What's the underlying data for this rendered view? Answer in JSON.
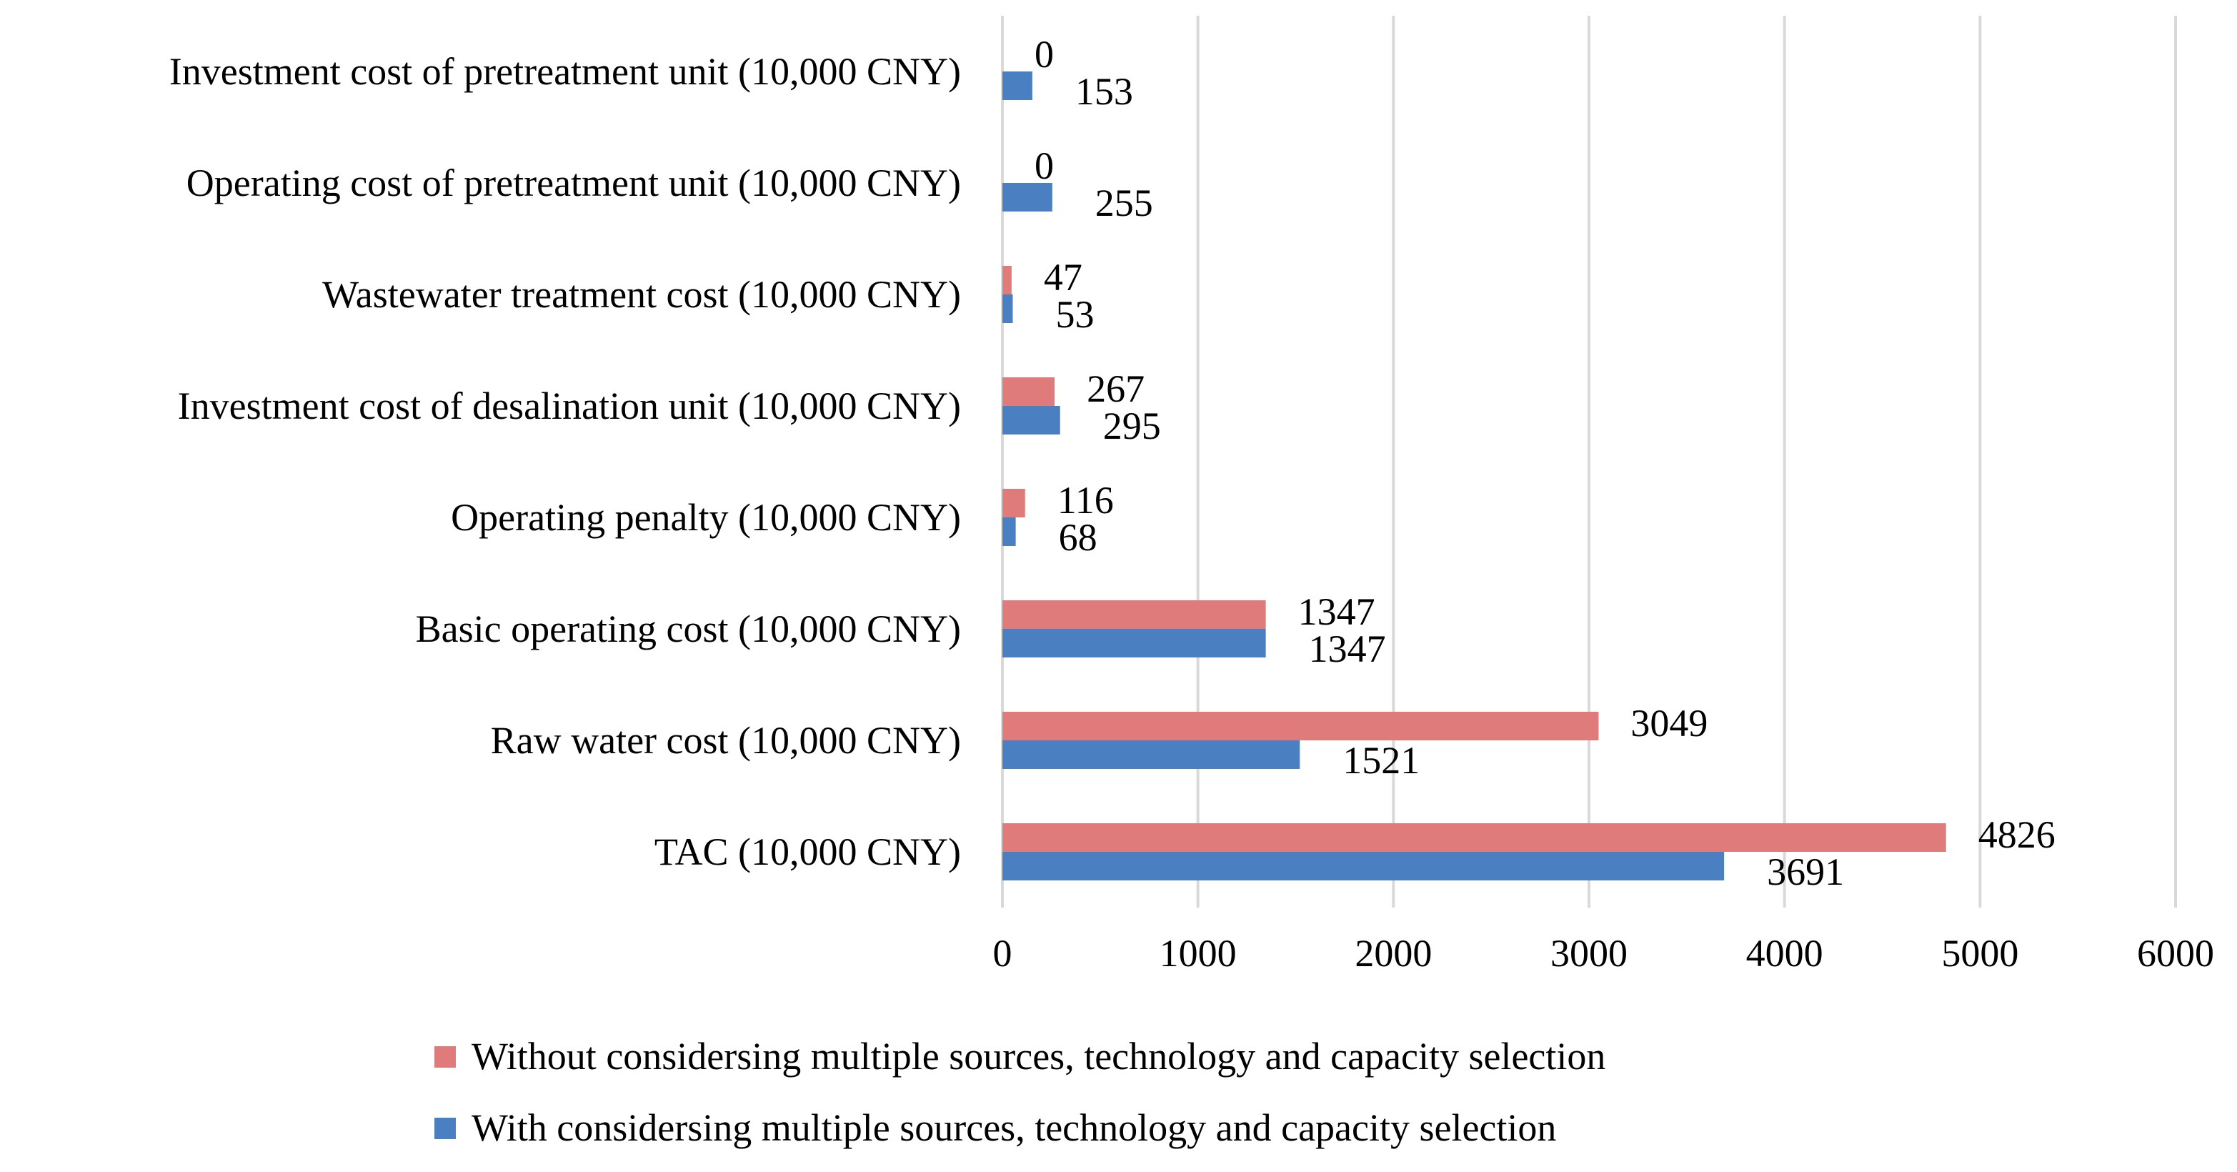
{
  "chart_data": {
    "type": "bar",
    "orientation": "horizontal",
    "categories": [
      "Investment cost of pretreatment unit (10,000 CNY)",
      "Operating cost of pretreatment unit (10,000 CNY)",
      "Wastewater treatment cost (10,000 CNY)",
      "Investment cost of desalination unit  (10,000 CNY)",
      "Operating penalty  (10,000 CNY)",
      "Basic operating cost (10,000 CNY)",
      "Raw water cost (10,000 CNY)",
      "TAC (10,000 CNY)"
    ],
    "series": [
      {
        "name": "Without considersing multiple sources, technology and capacity selection",
        "color": "#e07b7b",
        "values": [
          0,
          0,
          47,
          267,
          116,
          1347,
          3049,
          4826
        ]
      },
      {
        "name": "With considersing multiple sources, technology and capacity selection",
        "color": "#4a7fc1",
        "values": [
          153,
          255,
          53,
          295,
          68,
          1347,
          1521,
          3691
        ]
      }
    ],
    "xlim": [
      0,
      6000
    ],
    "xticks": [
      "0",
      "1000",
      "2000",
      "3000",
      "4000",
      "5000",
      "6000"
    ],
    "grid": true,
    "legend": "bottom",
    "title": "",
    "xlabel": "",
    "ylabel": ""
  }
}
